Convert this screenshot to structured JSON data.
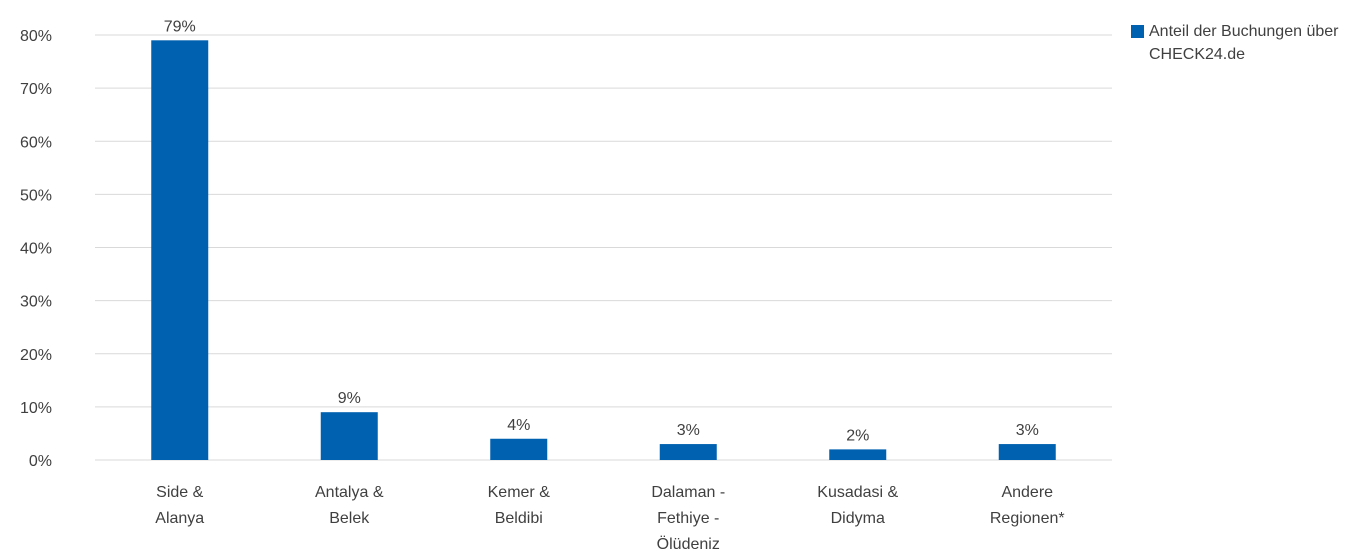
{
  "chart_data": {
    "type": "bar",
    "categories": [
      [
        "Side &",
        "Alanya"
      ],
      [
        "Antalya &",
        "Belek"
      ],
      [
        "Kemer &",
        "Beldibi"
      ],
      [
        "Dalaman -",
        "Fethiye -",
        "Ölüdeniz"
      ],
      [
        "Kusadasi &",
        "Didyma"
      ],
      [
        "Andere",
        "Regionen*"
      ]
    ],
    "series": [
      {
        "name": "Anteil der Buchungen über CHECK24.de",
        "values": [
          79,
          9,
          4,
          3,
          2,
          3
        ],
        "labels": [
          "79%",
          "9%",
          "4%",
          "3%",
          "2%",
          "3%"
        ],
        "color": "#0061b0"
      }
    ],
    "ylim": [
      0,
      80
    ],
    "yticks": [
      "0%",
      "10%",
      "20%",
      "30%",
      "40%",
      "50%",
      "60%",
      "70%",
      "80%"
    ],
    "grid": true,
    "legend_position": "top-right"
  },
  "legend": {
    "label": "Anteil der Buchungen über CHECK24.de"
  }
}
